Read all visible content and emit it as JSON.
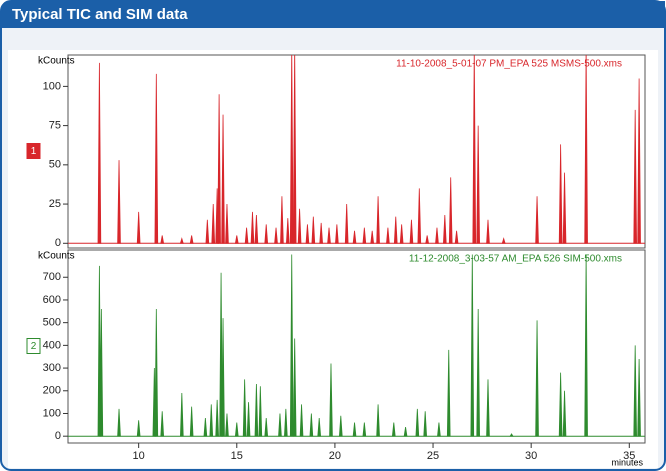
{
  "title": "Typical TIC and SIM data",
  "chart_data": [
    {
      "type": "line",
      "marker": "1",
      "y_label": "kCounts",
      "file_label": "11-10-2008_5-01-07 PM_EPA 525 MSMS-500.xms",
      "xlim": [
        6.4,
        35.8
      ],
      "ylim": [
        -3,
        120
      ],
      "yticks": [
        0,
        25,
        50,
        75,
        100
      ],
      "series": [
        {
          "name": "TIC",
          "color": "#d8262b",
          "x": [
            8.0,
            9.0,
            10.0,
            10.9,
            11.2,
            12.2,
            12.7,
            13.5,
            13.8,
            14.0,
            14.1,
            14.3,
            14.5,
            15.0,
            15.5,
            15.8,
            16.0,
            16.5,
            17.0,
            17.3,
            17.6,
            17.8,
            17.95,
            18.2,
            18.6,
            18.9,
            19.3,
            19.7,
            20.1,
            20.6,
            21.0,
            21.5,
            21.9,
            22.2,
            22.7,
            23.1,
            23.4,
            23.9,
            24.3,
            24.7,
            25.2,
            25.6,
            25.9,
            26.2,
            27.1,
            27.3,
            27.8,
            28.6,
            30.3,
            31.5,
            31.7,
            32.8,
            35.3,
            35.5
          ],
          "values": [
            115,
            53,
            20,
            108,
            5,
            3,
            5,
            15,
            25,
            35,
            95,
            82,
            25,
            5,
            10,
            20,
            18,
            12,
            10,
            30,
            16,
            125,
            125,
            22,
            12,
            17,
            13,
            10,
            12,
            25,
            8,
            10,
            8,
            30,
            10,
            17,
            12,
            15,
            35,
            5,
            10,
            18,
            42,
            8,
            125,
            75,
            15,
            3,
            30,
            63,
            45,
            125,
            85,
            105
          ]
        }
      ]
    },
    {
      "type": "line",
      "marker": "2",
      "y_label": "kCounts",
      "file_label": "11-12-2008_3-03-57 AM_EPA 526 SIM-500.xms",
      "x_label": "minutes",
      "xlim": [
        6.4,
        35.8
      ],
      "ylim": [
        -30,
        820
      ],
      "yticks": [
        0,
        100,
        200,
        300,
        400,
        500,
        600,
        700
      ],
      "xticks": [
        10,
        15,
        20,
        25,
        30,
        35
      ],
      "series": [
        {
          "name": "SIM",
          "color": "#2e8b2e",
          "x": [
            8.0,
            8.1,
            9.0,
            10.0,
            10.8,
            10.9,
            11.2,
            12.2,
            12.7,
            13.4,
            13.7,
            14.0,
            14.2,
            14.3,
            14.5,
            15.0,
            15.4,
            15.6,
            16.0,
            16.2,
            16.5,
            17.2,
            17.5,
            17.8,
            17.95,
            18.3,
            18.8,
            19.2,
            19.8,
            20.3,
            21.0,
            21.5,
            22.2,
            23.0,
            23.6,
            24.2,
            24.6,
            25.3,
            25.8,
            27.0,
            27.3,
            27.8,
            29.0,
            30.3,
            31.5,
            31.7,
            32.8,
            35.3,
            35.5
          ],
          "values": [
            750,
            560,
            120,
            70,
            300,
            560,
            110,
            190,
            130,
            80,
            140,
            160,
            720,
            520,
            100,
            60,
            250,
            150,
            230,
            220,
            80,
            100,
            120,
            800,
            430,
            140,
            100,
            80,
            320,
            90,
            60,
            60,
            140,
            60,
            40,
            120,
            110,
            60,
            380,
            800,
            560,
            250,
            10,
            510,
            280,
            200,
            800,
            400,
            340
          ]
        }
      ]
    }
  ]
}
